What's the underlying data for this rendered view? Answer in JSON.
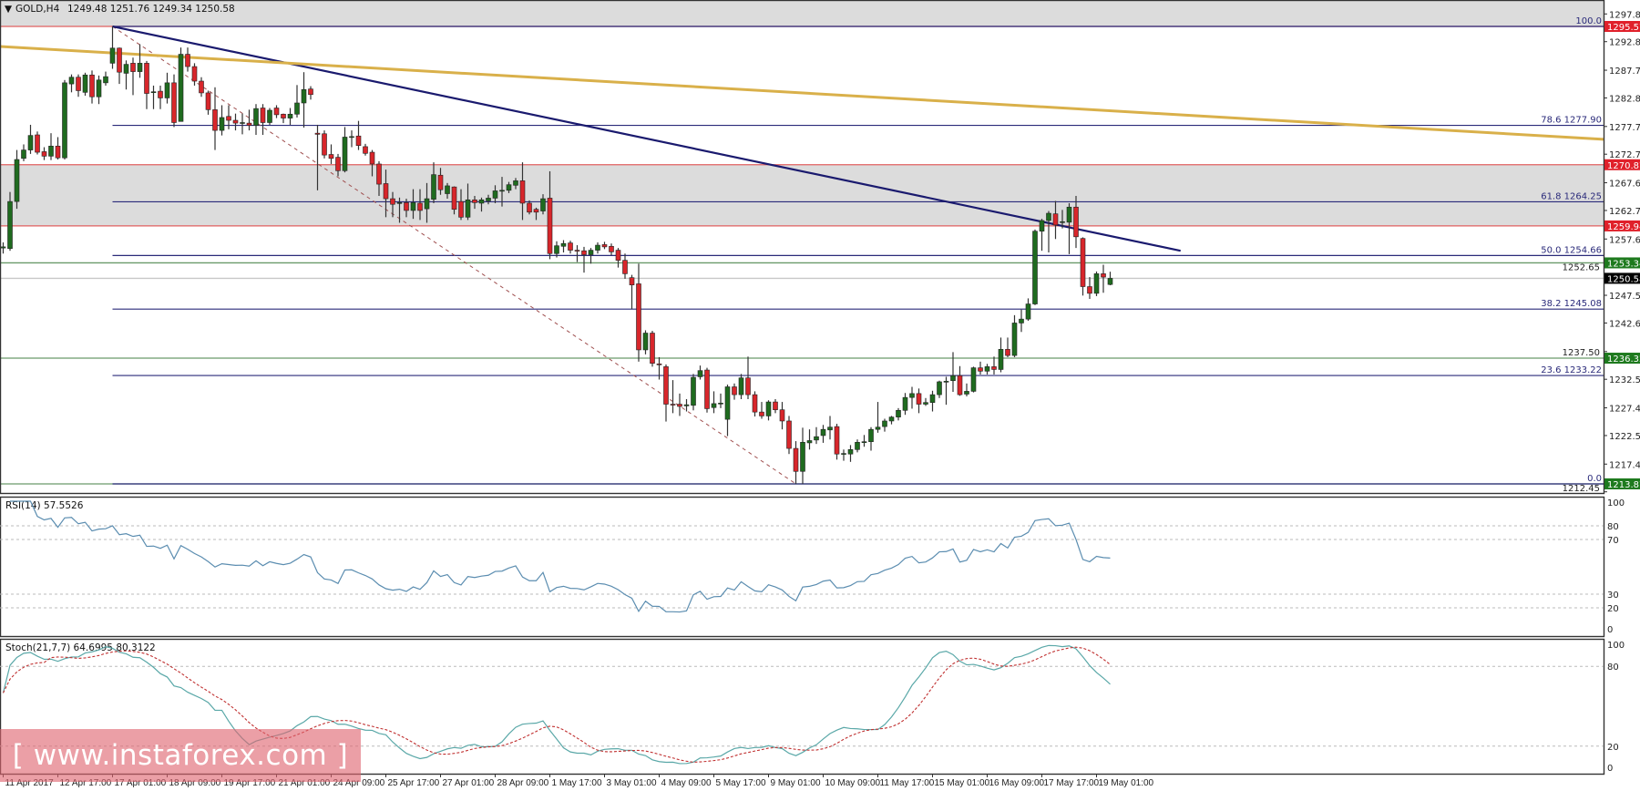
{
  "header": {
    "symbol": "GOLD,H4",
    "ohlc": "1249.48 1251.76 1249.34 1250.58"
  },
  "watermark": {
    "text": "[ www.instaforex.com ]"
  },
  "colors": {
    "bull": "#1f6b1f",
    "bear": "#d8262b",
    "wick": "#333333",
    "red_level": "#e0202a",
    "green_level": "#1e7a1e",
    "bid": "#000000",
    "downtrend": "#1a1a6e",
    "gold_trend": "#d9b04a",
    "fib": "#2a2a7a",
    "rsi": "#5b8db0",
    "stoch_main": "#5aa8a8",
    "stoch_signal": "#c03030",
    "zone": "#dcdcdc"
  },
  "chart_data": {
    "type": "candlestick",
    "title": "GOLD,H4",
    "ylim": [
      1212.45,
      1300.3
    ],
    "y_ticks": [
      "1297.80",
      "1292.85",
      "1287.75",
      "1282.80",
      "1277.70",
      "1272.75",
      "1267.65",
      "1262.70",
      "1257.60",
      "1252.65",
      "1247.55",
      "1242.60",
      "1237.50",
      "1232.55",
      "1227.45",
      "1222.50",
      "1217.40",
      "1212.45"
    ],
    "x_ticks": [
      {
        "bar": 0,
        "label": "11 Apr 2017"
      },
      {
        "bar": 8,
        "label": "12 Apr 17:00"
      },
      {
        "bar": 16,
        "label": "17 Apr 01:00"
      },
      {
        "bar": 24,
        "label": "18 Apr 09:00"
      },
      {
        "bar": 32,
        "label": "19 Apr 17:00"
      },
      {
        "bar": 40,
        "label": "21 Apr 01:00"
      },
      {
        "bar": 48,
        "label": "24 Apr 09:00"
      },
      {
        "bar": 56,
        "label": "25 Apr 17:00"
      },
      {
        "bar": 64,
        "label": "27 Apr 01:00"
      },
      {
        "bar": 72,
        "label": "28 Apr 09:00"
      },
      {
        "bar": 80,
        "label": "1 May 17:00"
      },
      {
        "bar": 88,
        "label": "3 May 01:00"
      },
      {
        "bar": 96,
        "label": "4 May 09:00"
      },
      {
        "bar": 104,
        "label": "5 May 17:00"
      },
      {
        "bar": 112,
        "label": "9 May 01:00"
      },
      {
        "bar": 120,
        "label": "10 May 09:00"
      },
      {
        "bar": 128,
        "label": "11 May 17:00"
      },
      {
        "bar": 136,
        "label": "15 May 01:00"
      },
      {
        "bar": 144,
        "label": "16 May 09:00"
      },
      {
        "bar": 152,
        "label": "17 May 17:00"
      },
      {
        "bar": 160,
        "label": "19 May 01:00"
      }
    ],
    "candles_format": "[open, high, low, close]",
    "candles": [
      [
        1256.0,
        1257.0,
        1255.0,
        1256.2
      ],
      [
        1255.9,
        1266.0,
        1255.5,
        1264.3
      ],
      [
        1264.3,
        1273.5,
        1263.0,
        1271.8
      ],
      [
        1272.0,
        1274.5,
        1271.5,
        1273.5
      ],
      [
        1273.5,
        1278.0,
        1272.8,
        1276.1
      ],
      [
        1276.2,
        1276.8,
        1272.7,
        1273.1
      ],
      [
        1273.2,
        1274.0,
        1271.7,
        1272.4
      ],
      [
        1272.4,
        1276.5,
        1271.7,
        1274.2
      ],
      [
        1274.2,
        1275.8,
        1271.8,
        1272.1
      ],
      [
        1272.1,
        1286.0,
        1271.8,
        1285.5
      ],
      [
        1285.3,
        1287.0,
        1283.8,
        1286.5
      ],
      [
        1286.5,
        1287.0,
        1283.0,
        1284.1
      ],
      [
        1283.8,
        1287.3,
        1283.2,
        1286.9
      ],
      [
        1286.9,
        1287.7,
        1281.8,
        1283.0
      ],
      [
        1283.0,
        1286.8,
        1281.7,
        1286.0
      ],
      [
        1285.5,
        1287.5,
        1285.0,
        1286.6
      ],
      [
        1289.0,
        1295.57,
        1288.0,
        1291.7
      ],
      [
        1291.7,
        1291.8,
        1285.3,
        1287.4
      ],
      [
        1287.2,
        1289.5,
        1284.3,
        1288.8
      ],
      [
        1289.0,
        1290.0,
        1283.3,
        1287.5
      ],
      [
        1287.5,
        1292.4,
        1286.4,
        1289.0
      ],
      [
        1289.0,
        1289.4,
        1280.8,
        1283.6
      ],
      [
        1283.8,
        1285.0,
        1280.8,
        1283.9
      ],
      [
        1284.0,
        1285.0,
        1280.8,
        1282.8
      ],
      [
        1282.8,
        1287.3,
        1281.8,
        1285.5
      ],
      [
        1285.5,
        1287.0,
        1277.6,
        1278.4
      ],
      [
        1278.6,
        1291.8,
        1278.6,
        1290.6
      ],
      [
        1290.6,
        1291.8,
        1287.5,
        1288.4
      ],
      [
        1288.4,
        1289.0,
        1285.0,
        1285.8
      ],
      [
        1285.8,
        1286.5,
        1283.0,
        1283.7
      ],
      [
        1283.7,
        1284.1,
        1279.8,
        1280.7
      ],
      [
        1280.7,
        1284.7,
        1273.5,
        1277.0
      ],
      [
        1277.0,
        1281.5,
        1276.1,
        1279.3
      ],
      [
        1279.5,
        1281.5,
        1277.2,
        1278.8
      ],
      [
        1278.8,
        1280.0,
        1277.0,
        1278.3
      ],
      [
        1278.3,
        1280.0,
        1276.3,
        1278.4
      ],
      [
        1278.3,
        1280.7,
        1277.0,
        1277.9
      ],
      [
        1277.9,
        1281.7,
        1276.2,
        1280.9
      ],
      [
        1281.0,
        1281.7,
        1276.2,
        1278.4
      ],
      [
        1278.4,
        1281.0,
        1278.0,
        1280.6
      ],
      [
        1281.0,
        1281.5,
        1279.2,
        1279.8
      ],
      [
        1279.9,
        1280.0,
        1278.3,
        1279.2
      ],
      [
        1279.2,
        1281.0,
        1278.0,
        1279.9
      ],
      [
        1279.9,
        1285.1,
        1279.3,
        1281.9
      ],
      [
        1281.9,
        1287.4,
        1277.5,
        1284.3
      ],
      [
        1284.4,
        1284.9,
        1282.5,
        1283.4
      ],
      [
        1276.5,
        1278.0,
        1266.3,
        1276.3
      ],
      [
        1276.4,
        1277.0,
        1272.0,
        1272.6
      ],
      [
        1272.7,
        1274.5,
        1271.0,
        1272.0
      ],
      [
        1272.2,
        1272.8,
        1268.8,
        1269.8
      ],
      [
        1269.8,
        1277.6,
        1269.5,
        1275.8
      ],
      [
        1275.8,
        1277.0,
        1274.0,
        1275.9
      ],
      [
        1276.0,
        1278.7,
        1273.5,
        1274.3
      ],
      [
        1274.1,
        1274.6,
        1272.5,
        1272.9
      ],
      [
        1273.1,
        1273.5,
        1268.8,
        1271.0
      ],
      [
        1271.0,
        1271.5,
        1265.3,
        1267.4
      ],
      [
        1267.5,
        1270.0,
        1261.5,
        1264.8
      ],
      [
        1264.8,
        1266.0,
        1261.5,
        1263.8
      ],
      [
        1264.0,
        1265.0,
        1260.5,
        1264.1
      ],
      [
        1264.1,
        1264.8,
        1261.5,
        1262.7
      ],
      [
        1262.7,
        1266.5,
        1261.2,
        1264.1
      ],
      [
        1264.0,
        1266.5,
        1261.0,
        1262.7
      ],
      [
        1263.0,
        1267.6,
        1260.5,
        1264.8
      ],
      [
        1264.7,
        1271.3,
        1264.0,
        1269.1
      ],
      [
        1269.0,
        1270.3,
        1265.5,
        1266.4
      ],
      [
        1265.7,
        1267.6,
        1264.8,
        1267.1
      ],
      [
        1266.9,
        1267.0,
        1262.0,
        1262.9
      ],
      [
        1264.3,
        1266.5,
        1261.0,
        1261.5
      ],
      [
        1261.5,
        1267.5,
        1261.0,
        1264.6
      ],
      [
        1264.6,
        1265.3,
        1263.0,
        1264.1
      ],
      [
        1264.0,
        1265.0,
        1262.5,
        1264.6
      ],
      [
        1264.4,
        1265.5,
        1263.8,
        1264.9
      ],
      [
        1264.9,
        1267.2,
        1264.0,
        1266.2
      ],
      [
        1266.2,
        1268.7,
        1263.4,
        1266.3
      ],
      [
        1266.3,
        1267.8,
        1265.8,
        1267.3
      ],
      [
        1267.2,
        1268.5,
        1266.5,
        1268.0
      ],
      [
        1268.0,
        1271.3,
        1261.0,
        1264.0
      ],
      [
        1264.0,
        1264.5,
        1262.0,
        1262.4
      ],
      [
        1262.9,
        1263.2,
        1261.0,
        1262.4
      ],
      [
        1262.6,
        1265.6,
        1262.0,
        1264.8
      ],
      [
        1264.9,
        1269.7,
        1254.0,
        1255.0
      ],
      [
        1255.0,
        1257.2,
        1254.3,
        1256.4
      ],
      [
        1256.3,
        1257.4,
        1255.2,
        1256.8
      ],
      [
        1256.9,
        1257.3,
        1255.0,
        1255.6
      ],
      [
        1255.6,
        1256.5,
        1253.5,
        1255.5
      ],
      [
        1255.5,
        1256.2,
        1251.6,
        1254.8
      ],
      [
        1254.8,
        1256.0,
        1253.2,
        1255.6
      ],
      [
        1255.6,
        1257.0,
        1255.0,
        1256.5
      ],
      [
        1256.6,
        1257.1,
        1255.8,
        1256.2
      ],
      [
        1256.3,
        1256.8,
        1254.7,
        1255.3
      ],
      [
        1255.6,
        1256.0,
        1252.5,
        1253.8
      ],
      [
        1253.8,
        1255.0,
        1250.5,
        1251.4
      ],
      [
        1250.7,
        1251.2,
        1245.1,
        1249.4
      ],
      [
        1249.6,
        1253.2,
        1235.7,
        1237.8
      ],
      [
        1237.8,
        1241.3,
        1237.0,
        1240.8
      ],
      [
        1240.8,
        1241.2,
        1234.8,
        1235.4
      ],
      [
        1235.3,
        1236.5,
        1232.5,
        1235.2
      ],
      [
        1234.8,
        1235.2,
        1225.0,
        1228.1
      ],
      [
        1228.1,
        1232.4,
        1226.5,
        1228.0
      ],
      [
        1228.1,
        1230.0,
        1226.0,
        1227.7
      ],
      [
        1227.8,
        1229.0,
        1226.8,
        1228.0
      ],
      [
        1227.9,
        1233.5,
        1227.0,
        1232.9
      ],
      [
        1233.0,
        1235.0,
        1232.5,
        1234.1
      ],
      [
        1234.2,
        1234.6,
        1226.6,
        1227.3
      ],
      [
        1227.5,
        1230.4,
        1226.5,
        1228.2
      ],
      [
        1228.2,
        1230.0,
        1227.4,
        1228.3
      ],
      [
        1225.4,
        1231.6,
        1222.4,
        1231.2
      ],
      [
        1231.2,
        1231.8,
        1228.9,
        1229.8
      ],
      [
        1229.8,
        1233.5,
        1229.0,
        1232.8
      ],
      [
        1232.8,
        1236.6,
        1229.0,
        1229.8
      ],
      [
        1229.8,
        1230.4,
        1225.9,
        1226.7
      ],
      [
        1226.7,
        1228.5,
        1225.5,
        1226.0
      ],
      [
        1226.0,
        1228.8,
        1225.2,
        1228.5
      ],
      [
        1228.5,
        1229.0,
        1226.5,
        1227.1
      ],
      [
        1227.1,
        1228.5,
        1223.6,
        1225.1
      ],
      [
        1225.1,
        1226.0,
        1219.2,
        1220.2
      ],
      [
        1220.2,
        1221.5,
        1213.87,
        1216.1
      ],
      [
        1216.1,
        1223.9,
        1213.87,
        1221.3
      ],
      [
        1221.2,
        1223.6,
        1220.0,
        1221.6
      ],
      [
        1221.7,
        1224.0,
        1221.0,
        1222.3
      ],
      [
        1222.5,
        1224.4,
        1221.2,
        1223.6
      ],
      [
        1223.5,
        1226.0,
        1221.8,
        1224.0
      ],
      [
        1224.1,
        1224.6,
        1218.2,
        1219.2
      ],
      [
        1219.3,
        1220.0,
        1218.0,
        1219.3
      ],
      [
        1219.2,
        1220.8,
        1217.8,
        1220.0
      ],
      [
        1220.0,
        1221.8,
        1219.5,
        1221.3
      ],
      [
        1221.4,
        1222.6,
        1220.5,
        1221.4
      ],
      [
        1221.4,
        1224.0,
        1219.8,
        1223.6
      ],
      [
        1223.6,
        1228.5,
        1223.0,
        1224.0
      ],
      [
        1224.1,
        1225.5,
        1223.2,
        1225.1
      ],
      [
        1225.1,
        1226.0,
        1224.5,
        1225.8
      ],
      [
        1225.8,
        1227.4,
        1225.2,
        1227.0
      ],
      [
        1227.0,
        1230.1,
        1226.2,
        1229.3
      ],
      [
        1229.3,
        1231.2,
        1227.3,
        1230.0
      ],
      [
        1230.0,
        1230.9,
        1226.5,
        1228.1
      ],
      [
        1228.1,
        1229.2,
        1227.8,
        1228.4
      ],
      [
        1228.4,
        1230.5,
        1226.8,
        1229.8
      ],
      [
        1229.8,
        1232.3,
        1229.2,
        1232.1
      ],
      [
        1232.2,
        1233.0,
        1228.0,
        1232.2
      ],
      [
        1232.3,
        1237.4,
        1230.3,
        1233.2
      ],
      [
        1233.2,
        1234.9,
        1229.6,
        1229.8
      ],
      [
        1229.9,
        1231.8,
        1229.5,
        1230.4
      ],
      [
        1230.4,
        1234.8,
        1230.2,
        1234.6
      ],
      [
        1234.6,
        1235.7,
        1233.4,
        1234.0
      ],
      [
        1234.0,
        1235.3,
        1233.4,
        1234.8
      ],
      [
        1234.8,
        1236.6,
        1233.4,
        1234.3
      ],
      [
        1234.3,
        1240.0,
        1233.8,
        1237.9
      ],
      [
        1237.9,
        1240.0,
        1236.5,
        1236.8
      ],
      [
        1236.8,
        1244.0,
        1236.5,
        1242.6
      ],
      [
        1242.6,
        1245.0,
        1241.0,
        1243.3
      ],
      [
        1243.3,
        1247.0,
        1243.0,
        1246.0
      ],
      [
        1246.0,
        1259.3,
        1245.8,
        1259.0
      ],
      [
        1259.0,
        1261.2,
        1255.5,
        1260.9
      ],
      [
        1260.9,
        1262.6,
        1255.2,
        1262.2
      ],
      [
        1262.1,
        1264.4,
        1257.6,
        1260.1
      ],
      [
        1260.6,
        1262.8,
        1259.5,
        1260.7
      ],
      [
        1260.6,
        1264.0,
        1254.9,
        1263.3
      ],
      [
        1263.3,
        1265.3,
        1256.0,
        1258.0
      ],
      [
        1257.7,
        1257.9,
        1247.5,
        1249.1
      ],
      [
        1249.1,
        1250.8,
        1246.9,
        1247.9
      ],
      [
        1247.9,
        1251.8,
        1247.4,
        1251.4
      ],
      [
        1251.4,
        1253.0,
        1248.0,
        1250.8
      ],
      [
        1249.48,
        1251.76,
        1249.34,
        1250.58
      ]
    ],
    "zones": [
      {
        "from": 1259.94,
        "to": 1270.87
      },
      {
        "from": 1295.57,
        "to": 1300.3
      }
    ],
    "horizontal_lines": [
      {
        "price": 1295.57,
        "label": "1295.57",
        "kind": "red_level"
      },
      {
        "price": 1270.87,
        "label": "1270.87",
        "kind": "red_level"
      },
      {
        "price": 1259.94,
        "label": "1259.94",
        "kind": "red_level"
      },
      {
        "price": 1253.34,
        "label": "1253.34",
        "kind": "green_level"
      },
      {
        "price": 1250.58,
        "label": "1250.58",
        "kind": "bid"
      },
      {
        "price": 1236.32,
        "label": "1236.32",
        "kind": "green_level"
      },
      {
        "price": 1213.87,
        "label": "1213.87",
        "kind": "green_level"
      }
    ],
    "fibonacci": {
      "from_bar": 16,
      "from_price": 1295.57,
      "to_bar": 116,
      "to_price": 1213.87,
      "levels": [
        {
          "price": 1295.57,
          "label": "100.0"
        },
        {
          "price": 1277.9,
          "label": "78.6 1277.90"
        },
        {
          "price": 1264.25,
          "label": "61.8 1264.25"
        },
        {
          "price": 1254.66,
          "label": "50.0 1254.66"
        },
        {
          "price": 1245.08,
          "label": "38.2 1245.08"
        },
        {
          "price": 1233.22,
          "label": "23.6 1233.22"
        },
        {
          "price": 1213.87,
          "label": "0.0"
        }
      ]
    },
    "trendlines": [
      {
        "name": "downtrend",
        "from_bar": 16,
        "from_price": 1295.57,
        "to_bar": 172.3,
        "to_price": 1255.5,
        "kind": "downtrend"
      },
      {
        "name": "gold-trend",
        "from_bar": -0.5,
        "from_price": 1292.0,
        "to_bar": 234.2,
        "to_price": 1275.4,
        "kind": "gold_trend"
      }
    ],
    "indicators": {
      "rsi": {
        "label": "RSI(14) 57.5526",
        "period": 14,
        "levels": [
          80,
          70,
          30,
          20
        ],
        "ticks": [
          "100",
          "80",
          "70",
          "30",
          "20",
          "0"
        ]
      },
      "stoch": {
        "label": "Stoch(21,7,7) 64.6995 80.3122",
        "k": 21,
        "d": 7,
        "slowing": 7,
        "levels": [
          80,
          20
        ],
        "ticks": [
          "100",
          "80",
          "20",
          "0"
        ]
      }
    }
  }
}
